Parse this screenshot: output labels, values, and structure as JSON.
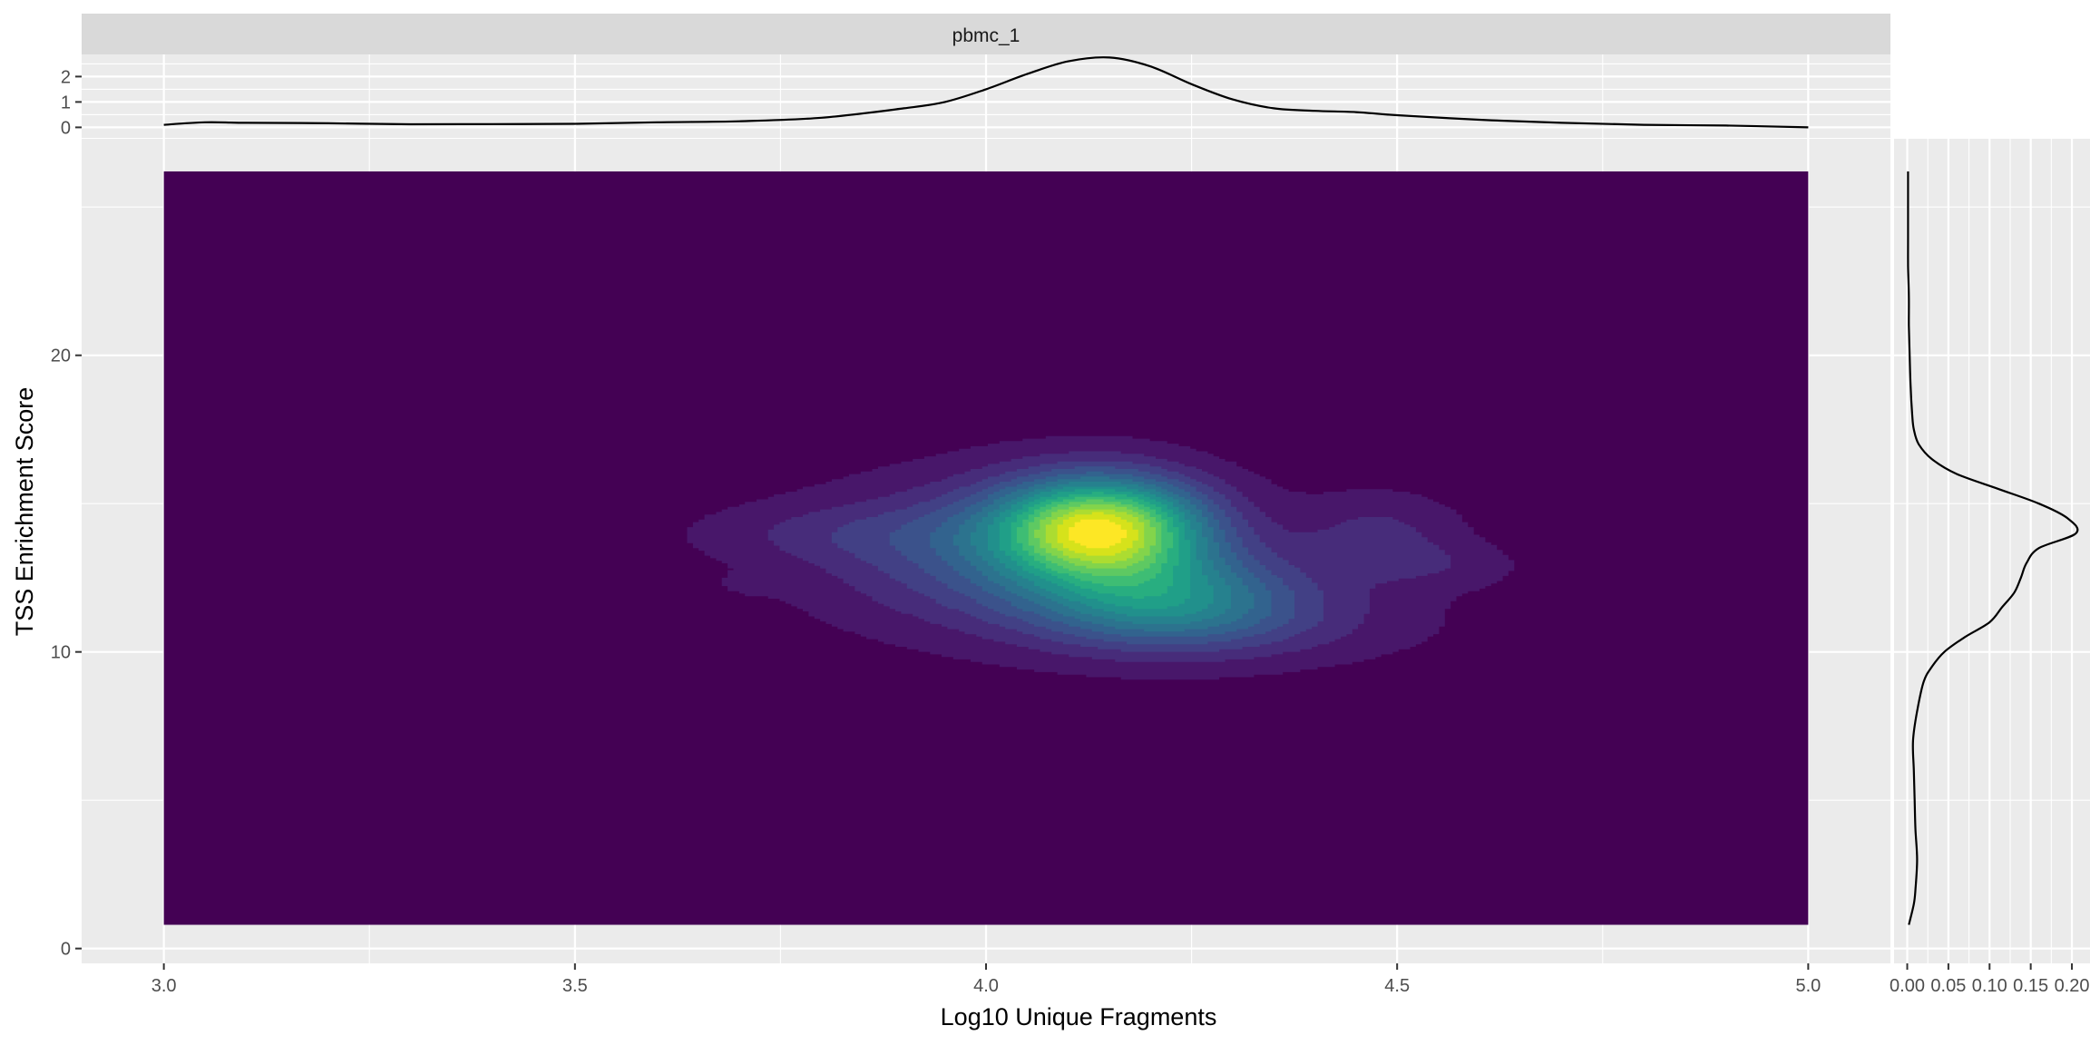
{
  "chart_data": {
    "type": "density2d",
    "facet_label": "pbmc_1",
    "xlabel": "Log10 Unique Fragments",
    "ylabel": "TSS Enrichment Score",
    "xlim": [
      2.9,
      5.1
    ],
    "ylim": [
      -0.5,
      27.3
    ],
    "x_ticks": [
      3.0,
      3.5,
      4.0,
      4.5,
      5.0
    ],
    "x_tick_labels": [
      "3.0",
      "3.5",
      "4.0",
      "4.5",
      "5.0"
    ],
    "y_ticks": [
      0,
      10,
      20
    ],
    "y_tick_labels": [
      "0",
      "10",
      "20"
    ],
    "heatmap_extent": {
      "x": [
        3.0,
        5.0
      ],
      "y": [
        0.8,
        26.2
      ]
    },
    "colors": {
      "panel_bg": "#EBEBEB",
      "grid": "#FFFFFF",
      "strip_bg": "#D9D9D9",
      "low": "#440154",
      "high": "#FDE725",
      "line": "#000000",
      "text": "#1A1A1A",
      "tick_text": "#4D4D4D"
    },
    "density_clusters": [
      {
        "x": 4.14,
        "y": 14.2,
        "sx": 0.085,
        "sy": 1.15,
        "w": 1.0
      },
      {
        "x": 4.22,
        "y": 11.8,
        "sx": 0.11,
        "sy": 1.1,
        "w": 0.45
      },
      {
        "x": 4.04,
        "y": 13.3,
        "sx": 0.16,
        "sy": 1.7,
        "w": 0.32
      },
      {
        "x": 3.82,
        "y": 14.0,
        "sx": 0.13,
        "sy": 0.7,
        "w": 0.09
      },
      {
        "x": 4.48,
        "y": 13.9,
        "sx": 0.07,
        "sy": 1.0,
        "w": 0.14
      },
      {
        "x": 4.56,
        "y": 12.9,
        "sx": 0.07,
        "sy": 0.55,
        "w": 0.07
      },
      {
        "x": 4.32,
        "y": 11.0,
        "sx": 0.16,
        "sy": 1.0,
        "w": 0.12
      },
      {
        "x": 3.72,
        "y": 12.3,
        "sx": 0.03,
        "sy": 0.25,
        "w": 0.05
      }
    ],
    "contour_levels": 16,
    "top_marginal": {
      "ylabel_ticks": [
        0,
        1,
        2
      ],
      "y_range": [
        -0.2,
        2.8
      ],
      "x": [
        3.0,
        3.05,
        3.1,
        3.2,
        3.3,
        3.4,
        3.5,
        3.6,
        3.7,
        3.8,
        3.9,
        3.95,
        4.0,
        4.05,
        4.1,
        4.15,
        4.2,
        4.25,
        4.3,
        4.35,
        4.4,
        4.45,
        4.5,
        4.6,
        4.7,
        4.8,
        4.9,
        5.0
      ],
      "density": [
        0.1,
        0.2,
        0.18,
        0.16,
        0.12,
        0.13,
        0.14,
        0.2,
        0.24,
        0.38,
        0.75,
        1.0,
        1.5,
        2.1,
        2.6,
        2.75,
        2.4,
        1.7,
        1.1,
        0.75,
        0.65,
        0.6,
        0.48,
        0.3,
        0.18,
        0.1,
        0.07,
        0.0
      ]
    },
    "right_marginal": {
      "x_ticks": [
        0.0,
        0.05,
        0.1,
        0.15,
        0.2
      ],
      "x_tick_labels": [
        "0.00",
        "0.05",
        "0.10",
        "0.15",
        "0.20"
      ],
      "x_range": [
        -0.016,
        0.222
      ],
      "y": [
        0.8,
        1.5,
        2,
        3,
        4,
        5,
        6,
        7,
        8,
        9,
        9.5,
        10,
        10.5,
        11,
        11.5,
        12,
        12.5,
        13,
        13.5,
        14,
        14.5,
        15,
        15.5,
        16,
        16.5,
        17,
        17.5,
        18,
        19,
        20,
        21,
        22,
        23,
        24,
        25,
        26.2
      ],
      "density": [
        0.002,
        0.008,
        0.01,
        0.012,
        0.01,
        0.009,
        0.008,
        0.007,
        0.012,
        0.02,
        0.03,
        0.045,
        0.07,
        0.1,
        0.115,
        0.13,
        0.138,
        0.145,
        0.16,
        0.205,
        0.195,
        0.16,
        0.11,
        0.06,
        0.03,
        0.014,
        0.008,
        0.006,
        0.004,
        0.003,
        0.002,
        0.002,
        0.001,
        0.001,
        0.001,
        0.001
      ]
    }
  }
}
